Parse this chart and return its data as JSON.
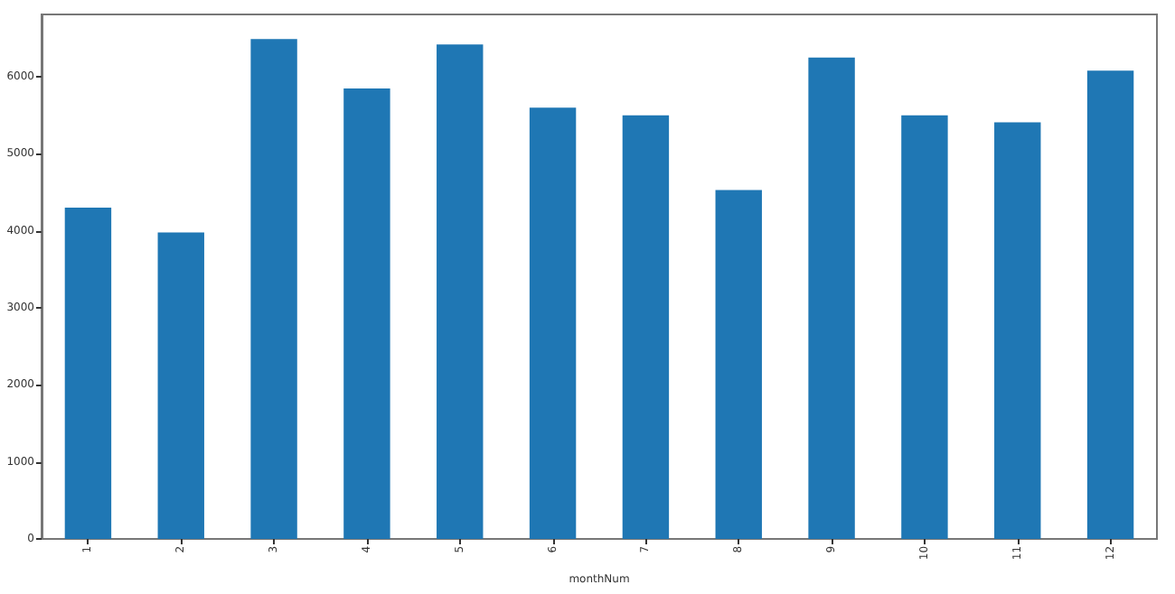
{
  "chart_data": {
    "type": "bar",
    "xlabel": "monthNum",
    "categories": [
      "1",
      "2",
      "3",
      "4",
      "5",
      "6",
      "7",
      "8",
      "9",
      "10",
      "11",
      "12"
    ],
    "values": [
      4300,
      3980,
      6490,
      5850,
      6420,
      5600,
      5500,
      4530,
      6250,
      5500,
      5410,
      6080
    ],
    "color": "#1f77b4",
    "ylim": [
      0,
      6810
    ],
    "yticks": [
      0,
      1000,
      2000,
      3000,
      4000,
      5000,
      6000
    ],
    "grid": false
  }
}
